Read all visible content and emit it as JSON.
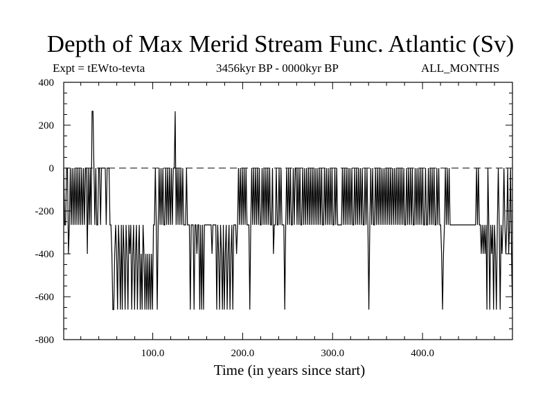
{
  "chart_data": {
    "type": "line",
    "title": "Depth of Max Merid Stream Func. Atlantic (Sv)",
    "subtitle_left": "Expt = tEWto-tevta",
    "subtitle_center": "3456kyr BP - 0000kyr BP",
    "subtitle_right": "ALL_MONTHS",
    "xlabel": "Time (in years since start)",
    "ylabel": "",
    "xlim": [
      1,
      500
    ],
    "ylim": [
      -800,
      400
    ],
    "x_ticks": [
      100,
      200,
      300,
      400
    ],
    "x_tick_labels": [
      "100.0",
      "200.0",
      "300.0",
      "400.0"
    ],
    "y_ticks": [
      400,
      200,
      0,
      -200,
      -400,
      -600,
      -800
    ],
    "y_tick_labels": [
      "400",
      "200",
      "0",
      "-200",
      "-400",
      "-600",
      "-800"
    ],
    "zero_line": {
      "value": 0,
      "style": "dashed"
    },
    "grid": false,
    "series": [
      {
        "values": [
          0,
          -265,
          -265,
          0,
          0,
          -400,
          -265,
          0,
          -265,
          0,
          -265,
          0,
          -265,
          0,
          -265,
          0,
          -265,
          0,
          -265,
          0,
          -265,
          0,
          -265,
          0,
          0,
          -400,
          0,
          -265,
          0,
          -265,
          265,
          265,
          0,
          -265,
          0,
          -265,
          -265,
          0,
          0,
          -265,
          0,
          0,
          0,
          0,
          0,
          -265,
          0,
          0,
          0,
          -265,
          -265,
          -400,
          -660,
          -660,
          -400,
          -265,
          -400,
          -660,
          -265,
          -400,
          -660,
          -265,
          -660,
          -265,
          -400,
          -660,
          -265,
          -400,
          -660,
          -265,
          -400,
          -265,
          -660,
          -400,
          -265,
          -660,
          -400,
          -265,
          -660,
          -400,
          -265,
          -660,
          -400,
          -660,
          -265,
          -400,
          -660,
          -400,
          -660,
          -400,
          -660,
          -400,
          -660,
          -400,
          -660,
          -265,
          -265,
          0,
          -265,
          -660,
          -265,
          0,
          -265,
          0,
          -265,
          0,
          -265,
          -265,
          0,
          -265,
          0,
          -265,
          0,
          -265,
          0,
          -265,
          0,
          0,
          265,
          -265,
          0,
          -265,
          0,
          -265,
          0,
          -265,
          0,
          -265,
          -265,
          -265,
          0,
          -265,
          -265,
          -265,
          -660,
          -265,
          -265,
          -265,
          -660,
          -265,
          -265,
          -400,
          -265,
          -265,
          -660,
          -265,
          -660,
          -265,
          -660,
          -265,
          -265,
          -265,
          -265,
          -265,
          -265,
          -265,
          -265,
          -400,
          -265,
          -265,
          -265,
          -265,
          -660,
          -265,
          -400,
          -660,
          -265,
          -400,
          -660,
          -265,
          -660,
          -400,
          -265,
          -660,
          -400,
          -265,
          -660,
          -400,
          -265,
          -660,
          -265,
          -265,
          -265,
          -400,
          -265,
          0,
          -265,
          0,
          -265,
          0,
          -265,
          0,
          -265,
          0,
          -265,
          -265,
          -265,
          -660,
          -265,
          0,
          -265,
          0,
          -265,
          0,
          -265,
          0,
          -265,
          0,
          -265,
          -265,
          0,
          -265,
          0,
          -265,
          0,
          -265,
          0,
          -265,
          0,
          -265,
          -265,
          0,
          -400,
          -265,
          -265,
          0,
          -265,
          -265,
          0,
          -265,
          0,
          -265,
          -265,
          -265,
          -660,
          -265,
          0,
          -265,
          0,
          -265,
          0,
          -265,
          -265,
          0,
          -265,
          0,
          0,
          -265,
          0,
          -265,
          0,
          -265,
          -265,
          0,
          -265,
          0,
          -265,
          0,
          -265,
          0,
          -265,
          0,
          -265,
          0,
          -265,
          0,
          -265,
          0,
          -265,
          0,
          -265,
          0,
          -265,
          0,
          -265,
          -265,
          0,
          -265,
          0,
          -265,
          0,
          -265,
          0,
          -265,
          0,
          -265,
          -265,
          0,
          -265,
          0,
          -265,
          -265,
          -265,
          -265,
          -265,
          0,
          -265,
          0,
          -265,
          0,
          -265,
          0,
          -265,
          0,
          -265,
          0,
          -265,
          -265,
          0,
          -265,
          0,
          -265,
          0,
          -265,
          0,
          -265,
          0,
          -265,
          -265,
          0,
          -265,
          0,
          -265,
          -660,
          -265,
          0,
          -265,
          0,
          -265,
          -265,
          0,
          -265,
          0,
          -265,
          0,
          -265,
          0,
          -265,
          0,
          -265,
          0,
          -265,
          0,
          -265,
          0,
          -265,
          0,
          -265,
          0,
          -265,
          0,
          -265,
          0,
          -265,
          0,
          -265,
          0,
          -265,
          0,
          -265,
          0,
          -265,
          -265,
          0,
          -265,
          0,
          -265,
          0,
          -265,
          0,
          -265,
          -265,
          0,
          -265,
          0,
          -265,
          0,
          -265,
          0,
          -265,
          0,
          -265,
          -265,
          0,
          -265,
          -265,
          0,
          -265,
          0,
          -265,
          0,
          -265,
          0,
          -265,
          -265,
          0,
          -265,
          0,
          -265,
          -265,
          -400,
          -660,
          -400,
          -265,
          0,
          -265,
          0,
          -265,
          0,
          -265,
          -265,
          -265,
          -265,
          -265,
          -265,
          -265,
          -265,
          -265,
          -265,
          -265,
          -265,
          -265,
          -265,
          -265,
          -265,
          -265,
          -265,
          -265,
          -265,
          -265,
          -265,
          -265,
          -265,
          -265,
          -265,
          -265,
          -265,
          0,
          -265,
          0,
          -265,
          -265,
          -400,
          -265,
          -400,
          -265,
          -400,
          -265,
          -660,
          0,
          -265,
          -660,
          -265,
          -400,
          -265,
          -660,
          -265,
          -400,
          -660,
          -265,
          0,
          -265,
          -660,
          -265,
          -400,
          -265,
          0,
          -265,
          -400,
          -265,
          0,
          -400,
          -265,
          0,
          -400,
          -660
        ]
      }
    ]
  }
}
